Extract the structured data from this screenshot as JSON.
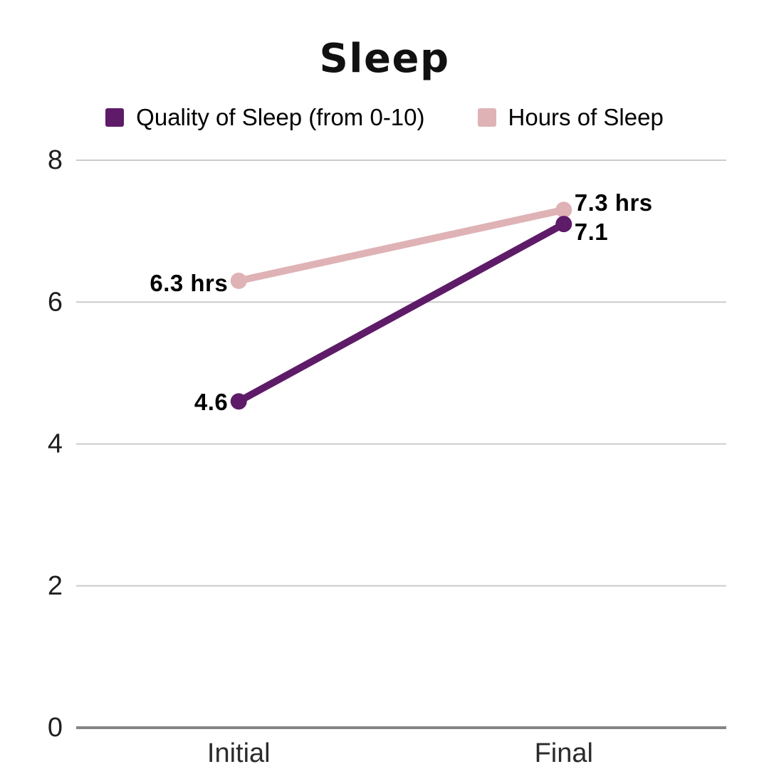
{
  "chart_data": {
    "type": "line",
    "title": "Sleep",
    "categories": [
      "Initial",
      "Final"
    ],
    "series": [
      {
        "name": "Hours of Sleep",
        "color": "#dfb2b6",
        "values": [
          6.3,
          7.3
        ],
        "point_labels": [
          "6.3 hrs",
          "7.3 hrs"
        ],
        "label_sides": [
          "left",
          "right"
        ],
        "label_offsets_y": [
          3,
          -10
        ]
      },
      {
        "name": "Quality of Sleep (from 0-10)",
        "color": "#5e1b68",
        "values": [
          4.6,
          7.1
        ],
        "point_labels": [
          "4.6",
          "7.1"
        ],
        "label_sides": [
          "left",
          "right"
        ],
        "label_offsets_y": [
          1,
          11
        ]
      }
    ],
    "legend_order": [
      1,
      0
    ],
    "ylim": [
      0,
      8
    ],
    "yticks": [
      0,
      2,
      4,
      6,
      8
    ],
    "grid": true,
    "legend_position": "top",
    "colors": {
      "grid": "#cccccc",
      "axis": "#858585",
      "title_text": "#111111",
      "label_text": "#000000"
    }
  }
}
